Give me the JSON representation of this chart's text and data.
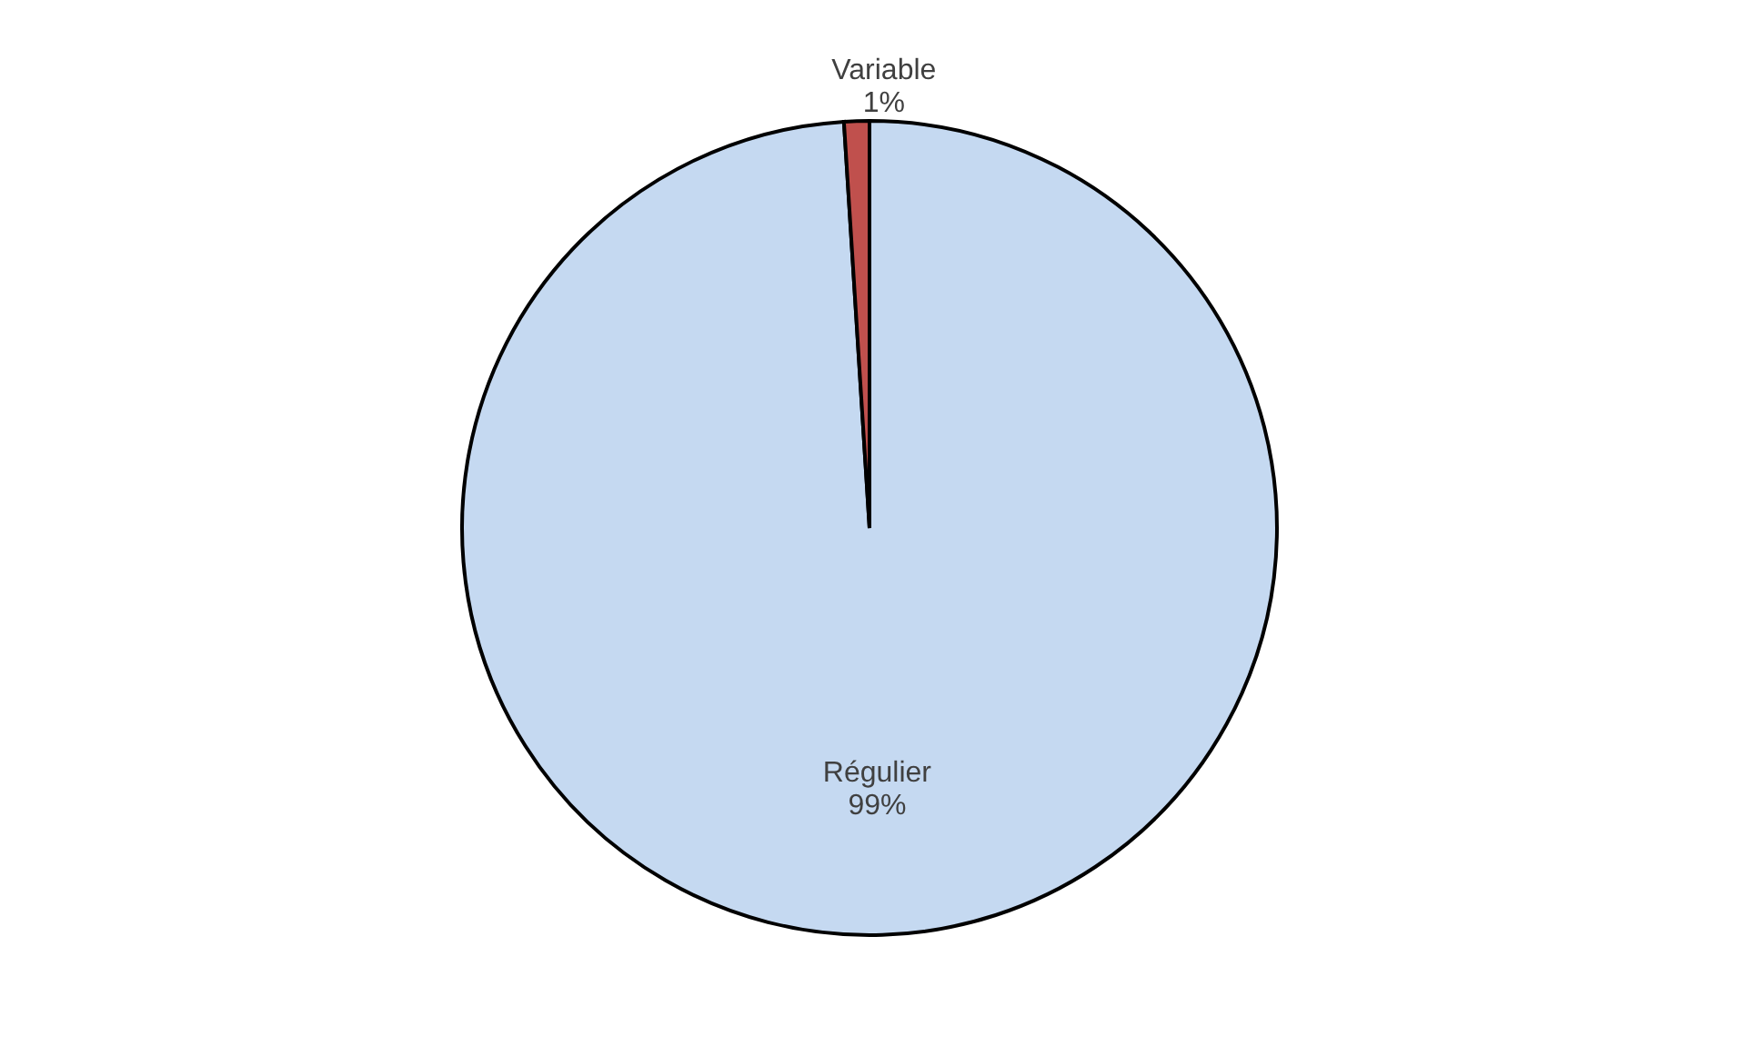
{
  "chart_data": {
    "type": "pie",
    "categories": [
      "Régulier",
      "Variable"
    ],
    "values": [
      99,
      1
    ],
    "colors": [
      "#c5d9f1",
      "#c0504d"
    ],
    "value_labels": [
      "99%",
      "1%"
    ]
  }
}
